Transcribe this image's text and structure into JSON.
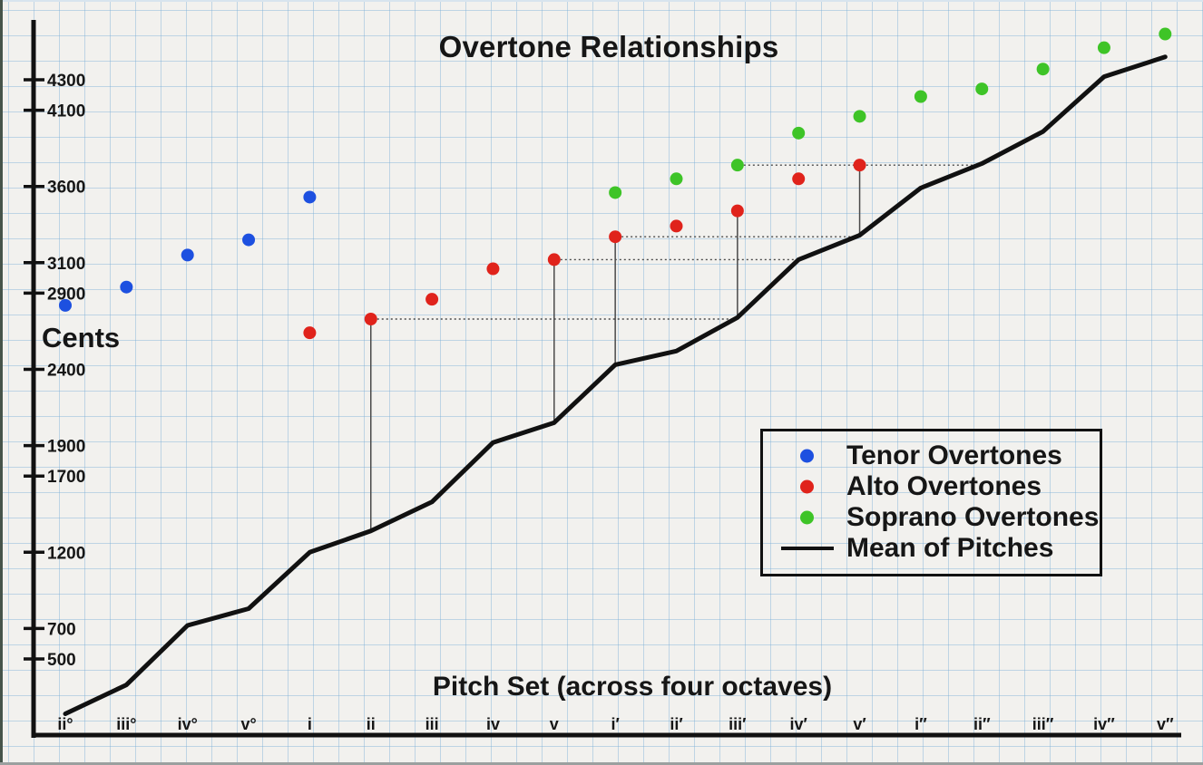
{
  "chart_data": {
    "type": "scatter",
    "title": "Overtone Relationships",
    "xlabel": "Pitch Set (across four octaves)",
    "ylabel": "Cents",
    "grid": true,
    "categories": [
      "ii°",
      "iii°",
      "iv°",
      "v°",
      "i",
      "ii",
      "iii",
      "iv",
      "v",
      "i′",
      "ii′",
      "iii′",
      "iv′",
      "v′",
      "i″",
      "ii″",
      "iii″",
      "iv″",
      "v″"
    ],
    "y_ticks": [
      4300,
      4100,
      3600,
      3100,
      2900,
      2400,
      1900,
      1700,
      1200,
      700,
      500
    ],
    "series": [
      {
        "name": "Tenor Overtones",
        "type": "scatter",
        "color": "#1d50e0",
        "start_category": "ii°",
        "values": [
          2820,
          2940,
          3150,
          3250,
          3530
        ]
      },
      {
        "name": "Alto Overtones",
        "type": "scatter",
        "color": "#e0231b",
        "start_category": "i",
        "values": [
          2640,
          2730,
          2860,
          3060,
          3120,
          3270,
          3340,
          3440,
          3650,
          3740
        ]
      },
      {
        "name": "Soprano Overtones",
        "type": "scatter",
        "color": "#3ec427",
        "start_category": "i′",
        "values": [
          3560,
          3650,
          3740,
          3950,
          4060,
          4190,
          4240,
          4370,
          4510,
          4600
        ]
      },
      {
        "name": "Mean of Pitches",
        "type": "line",
        "color": "#111111",
        "start_category": "ii°",
        "values": [
          140,
          330,
          720,
          830,
          1200,
          1340,
          1530,
          1920,
          2050,
          2430,
          2520,
          2740,
          3120,
          3280,
          3590,
          3750,
          3960,
          4320,
          4450
        ]
      }
    ],
    "connectors": {
      "vertical": [
        {
          "category": "ii",
          "from_cents": 2730,
          "to_cents": 1340
        },
        {
          "category": "v",
          "from_cents": 3120,
          "to_cents": 2050
        },
        {
          "category": "i′",
          "from_cents": 3270,
          "to_cents": 2430
        },
        {
          "category": "iii′",
          "from_cents": 3440,
          "to_cents": 2740
        },
        {
          "category": "v′",
          "from_cents": 3740,
          "to_cents": 3280
        }
      ],
      "horizontal_dotted": [
        {
          "cents": 2730,
          "from_category": "ii"
        },
        {
          "cents": 3120,
          "from_category": "v"
        },
        {
          "cents": 3270,
          "from_category": "i′"
        },
        {
          "cents": 3740,
          "from_category": "iii′"
        }
      ]
    },
    "legend_position": "middle-right",
    "colors": {
      "paper": "#f2f1ee",
      "grid_line": "#a8c8e2",
      "axis": "#111111",
      "connector": "#4a4a4a"
    }
  }
}
